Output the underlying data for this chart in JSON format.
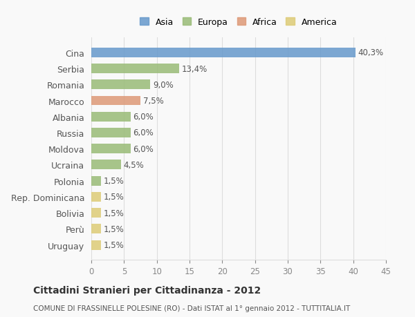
{
  "categories": [
    "Cina",
    "Serbia",
    "Romania",
    "Marocco",
    "Albania",
    "Russia",
    "Moldova",
    "Ucraina",
    "Polonia",
    "Rep. Dominicana",
    "Bolivia",
    "Perù",
    "Uruguay"
  ],
  "values": [
    40.3,
    13.4,
    9.0,
    7.5,
    6.0,
    6.0,
    6.0,
    4.5,
    1.5,
    1.5,
    1.5,
    1.5,
    1.5
  ],
  "labels": [
    "40,3%",
    "13,4%",
    "9,0%",
    "7,5%",
    "6,0%",
    "6,0%",
    "6,0%",
    "4,5%",
    "1,5%",
    "1,5%",
    "1,5%",
    "1,5%",
    "1,5%"
  ],
  "continents": [
    "Asia",
    "Europa",
    "Europa",
    "Africa",
    "Europa",
    "Europa",
    "Europa",
    "Europa",
    "Europa",
    "America",
    "America",
    "America",
    "America"
  ],
  "colors": {
    "Asia": "#6699cc",
    "Europa": "#99bb77",
    "Africa": "#dd9977",
    "America": "#ddcc77"
  },
  "legend_order": [
    "Asia",
    "Europa",
    "Africa",
    "America"
  ],
  "xlim": [
    0,
    45
  ],
  "xticks": [
    0,
    5,
    10,
    15,
    20,
    25,
    30,
    35,
    40,
    45
  ],
  "title": "Cittadini Stranieri per Cittadinanza - 2012",
  "subtitle": "COMUNE DI FRASSINELLE POLESINE (RO) - Dati ISTAT al 1° gennaio 2012 - TUTTITALIA.IT",
  "bg_color": "#f9f9f9",
  "grid_color": "#dddddd",
  "bar_height": 0.6
}
